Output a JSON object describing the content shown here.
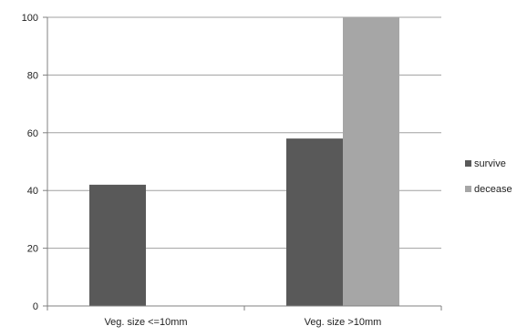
{
  "chart_data": {
    "type": "bar",
    "categories": [
      "Veg. size <=10mm",
      "Veg. size >10mm"
    ],
    "series": [
      {
        "name": "survive",
        "color": "#595959",
        "values": [
          42,
          58
        ]
      },
      {
        "name": "decease",
        "color": "#a6a6a6",
        "values": [
          0,
          100
        ]
      }
    ],
    "ylim": [
      0,
      100
    ],
    "yticks": [
      0,
      20,
      40,
      60,
      80,
      100
    ],
    "grid": true,
    "legend_position": "right"
  }
}
